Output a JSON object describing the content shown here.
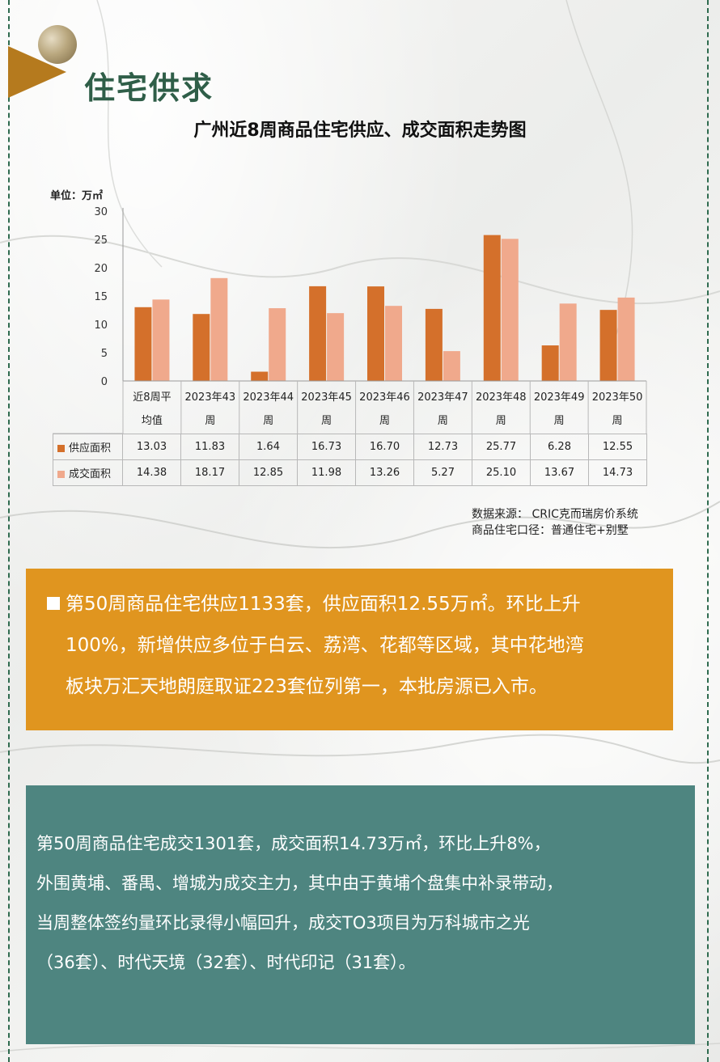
{
  "header": {
    "section_title": "住宅供求",
    "chart_title": "广州近8周商品住宅供应、成交面积走势图"
  },
  "colors": {
    "supply": "#d4702b",
    "deal": "#f0a98c",
    "title_green": "#2f5e48",
    "orange_box": "#e0951f",
    "teal_box": "#4e8580"
  },
  "chart_data": {
    "type": "bar",
    "title": "广州近8周商品住宅供应、成交面积走势图",
    "unit": "单位：万㎡",
    "categories": [
      [
        "近8周平",
        "均值"
      ],
      [
        "2023年43",
        "周"
      ],
      [
        "2023年44",
        "周"
      ],
      [
        "2023年45",
        "周"
      ],
      [
        "2023年46",
        "周"
      ],
      [
        "2023年47",
        "周"
      ],
      [
        "2023年48",
        "周"
      ],
      [
        "2023年49",
        "周"
      ],
      [
        "2023年50",
        "周"
      ]
    ],
    "ylim": [
      0,
      30
    ],
    "yticks": [
      "0",
      "5",
      "10",
      "15",
      "20",
      "25",
      "30"
    ],
    "series": [
      {
        "name": "供应面积",
        "values": [
          13.03,
          11.83,
          1.64,
          16.73,
          16.7,
          12.73,
          25.77,
          6.28,
          12.55
        ],
        "labels": [
          "13.03",
          "11.83",
          "1.64",
          "16.73",
          "16.70",
          "12.73",
          "25.77",
          "6.28",
          "12.55"
        ]
      },
      {
        "name": "成交面积",
        "values": [
          14.38,
          18.17,
          12.85,
          11.98,
          13.26,
          5.27,
          25.1,
          13.67,
          14.73
        ],
        "labels": [
          "14.38",
          "18.17",
          "12.85",
          "11.98",
          "13.26",
          "5.27",
          "25.10",
          "13.67",
          "14.73"
        ]
      }
    ],
    "grid": false,
    "legend": "table-below"
  },
  "source": {
    "line1": "数据来源：  CRIC克而瑞房价系统",
    "line2": "商品住宅口径：普通住宅+别墅"
  },
  "supply_note": {
    "line1": "第50周商品住宅供应1133套，供应面积12.55万㎡。环比上升",
    "line2": "100%，新增供应多位于白云、荔湾、花都等区域，其中花地湾",
    "line3": "板块万汇天地朗庭取证223套位列第一，本批房源已入市。"
  },
  "deal_note": {
    "line1": "第50周商品住宅成交1301套，成交面积14.73万㎡，环比上升8%，",
    "line2": "外围黄埔、番禺、增城为成交主力，其中由于黄埔个盘集中补录带动，",
    "line3": "当周整体签约量环比录得小幅回升，成交TO3项目为万科城市之光",
    "line4": "（36套）、时代天境（32套）、时代印记（31套）。"
  }
}
